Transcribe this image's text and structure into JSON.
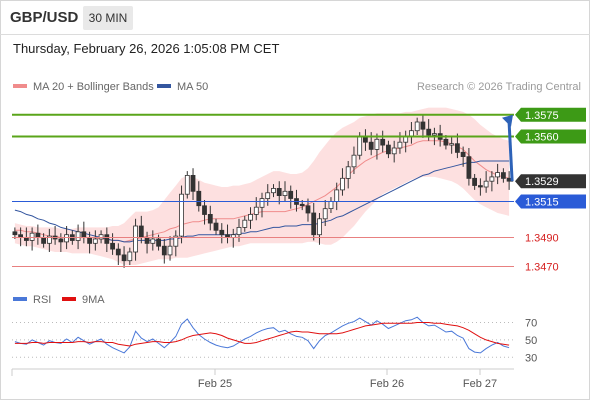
{
  "header": {
    "symbol": "GBP/USD",
    "timeframe": "30 MIN",
    "datetime": "Thursday, February 26, 2026 1:05:08 PM CET"
  },
  "chart_data": {
    "type": "candlestick",
    "legend": [
      {
        "label": "MA 20 + Bollinger Bands",
        "color": "#f08c8c"
      },
      {
        "label": "MA 50",
        "color": "#34569f"
      }
    ],
    "attribution": "Research © 2026 Trading Central",
    "x_ticks": [
      "Feb 25",
      "Feb 26",
      "Feb 27"
    ],
    "y_range": [
      1.3462,
      1.3588
    ],
    "current_price": "1.3529",
    "levels": [
      {
        "value": 1.3575,
        "label": "1.3575",
        "style": "resistance"
      },
      {
        "value": 1.356,
        "label": "1.3560",
        "style": "resistance"
      },
      {
        "value": 1.3529,
        "label": "1.3529",
        "style": "current"
      },
      {
        "value": 1.3515,
        "label": "1.3515",
        "style": "pivot"
      },
      {
        "value": 1.349,
        "label": "1.3490",
        "style": "support"
      },
      {
        "value": 1.347,
        "label": "1.3470",
        "style": "support"
      }
    ],
    "forecast_arrow": {
      "from": 1.3529,
      "to": 1.3575
    },
    "closes": [
      1.3492,
      1.349,
      1.3488,
      1.3493,
      1.349,
      1.3486,
      1.3491,
      1.3489,
      1.3487,
      1.3492,
      1.3488,
      1.3494,
      1.349,
      1.3486,
      1.3489,
      1.3492,
      1.3486,
      1.3482,
      1.3478,
      1.3474,
      1.348,
      1.3498,
      1.349,
      1.3486,
      1.3489,
      1.3484,
      1.3478,
      1.3484,
      1.3491,
      1.352,
      1.3533,
      1.3522,
      1.3512,
      1.3506,
      1.35,
      1.3495,
      1.3492,
      1.349,
      1.3492,
      1.3497,
      1.3502,
      1.3506,
      1.3511,
      1.3517,
      1.3521,
      1.3524,
      1.3519,
      1.3522,
      1.3517,
      1.3513,
      1.3512,
      1.3507,
      1.3492,
      1.3503,
      1.351,
      1.3515,
      1.3523,
      1.3531,
      1.3539,
      1.3547,
      1.356,
      1.3556,
      1.3551,
      1.3558,
      1.3554,
      1.3548,
      1.3552,
      1.3556,
      1.356,
      1.3564,
      1.357,
      1.3565,
      1.3561,
      1.3562,
      1.3558,
      1.3554,
      1.3555,
      1.3549,
      1.3546,
      1.3531,
      1.3526,
      1.3525,
      1.3529,
      1.3532,
      1.3535,
      1.3531,
      1.3529
    ],
    "ma20": [
      1.3495,
      1.3495,
      1.3494,
      1.3494,
      1.3493,
      1.3492,
      1.3491,
      1.3491,
      1.349,
      1.349,
      1.349,
      1.349,
      1.349,
      1.349,
      1.349,
      1.3489,
      1.3489,
      1.3488,
      1.3488,
      1.3487,
      1.3488,
      1.3489,
      1.349,
      1.3491,
      1.3492,
      1.3493,
      1.3494,
      1.3496,
      1.3497,
      1.3499,
      1.35,
      1.3501,
      1.3501,
      1.3502,
      1.3503,
      1.3503,
      1.3503,
      1.3503,
      1.3503,
      1.3504,
      1.3505,
      1.3506,
      1.3507,
      1.3508,
      1.3508,
      1.3508,
      1.3508,
      1.3508,
      1.3509,
      1.351,
      1.3511,
      1.3513,
      1.3515,
      1.3517,
      1.3519,
      1.3522,
      1.3525,
      1.3529,
      1.3533,
      1.3537,
      1.354,
      1.3543,
      1.3545,
      1.3547,
      1.3549,
      1.355,
      1.3551,
      1.3552,
      1.3553,
      1.3554,
      1.3556,
      1.3557,
      1.3557,
      1.3557,
      1.3557,
      1.3556,
      1.3555,
      1.3553,
      1.3551,
      1.3547,
      1.3543,
      1.354,
      1.3537,
      1.3535,
      1.3533,
      1.3532,
      1.3531
    ],
    "bb_upper": [
      1.35,
      1.3499,
      1.3498,
      1.3498,
      1.3497,
      1.3497,
      1.3497,
      1.3497,
      1.3496,
      1.3496,
      1.3496,
      1.3497,
      1.3497,
      1.3497,
      1.3497,
      1.3497,
      1.3497,
      1.3498,
      1.3498,
      1.35,
      1.3504,
      1.3508,
      1.3508,
      1.3508,
      1.3509,
      1.3511,
      1.3516,
      1.3521,
      1.3526,
      1.3531,
      1.3533,
      1.3532,
      1.353,
      1.3528,
      1.3527,
      1.3526,
      1.3525,
      1.3525,
      1.3526,
      1.3526,
      1.3527,
      1.3528,
      1.353,
      1.3532,
      1.3534,
      1.3536,
      1.3536,
      1.3535,
      1.3534,
      1.3534,
      1.3535,
      1.3538,
      1.3543,
      1.3549,
      1.3554,
      1.3559,
      1.3563,
      1.3566,
      1.3568,
      1.357,
      1.3573,
      1.3574,
      1.3575,
      1.3576,
      1.3576,
      1.3576,
      1.3576,
      1.3576,
      1.3577,
      1.3577,
      1.3578,
      1.3579,
      1.358,
      1.358,
      1.358,
      1.358,
      1.3579,
      1.3578,
      1.3577,
      1.3575,
      1.3572,
      1.3568,
      1.3565,
      1.3562,
      1.356,
      1.3558,
      1.3557
    ],
    "bb_lower": [
      1.3486,
      1.3485,
      1.3484,
      1.3484,
      1.3483,
      1.3482,
      1.3481,
      1.348,
      1.348,
      1.348,
      1.3479,
      1.3479,
      1.3479,
      1.3479,
      1.3478,
      1.3477,
      1.3476,
      1.3475,
      1.3473,
      1.3471,
      1.3471,
      1.3471,
      1.3472,
      1.3473,
      1.3474,
      1.3475,
      1.3475,
      1.3475,
      1.3476,
      1.3476,
      1.3476,
      1.3477,
      1.3478,
      1.3479,
      1.348,
      1.3481,
      1.3482,
      1.3483,
      1.3484,
      1.3484,
      1.3485,
      1.3486,
      1.3486,
      1.3486,
      1.3486,
      1.3486,
      1.3486,
      1.3486,
      1.3486,
      1.3486,
      1.3486,
      1.3487,
      1.3487,
      1.3486,
      1.3485,
      1.3485,
      1.3487,
      1.349,
      1.3494,
      1.3498,
      1.3503,
      1.3508,
      1.3512,
      1.3516,
      1.352,
      1.3522,
      1.3524,
      1.3526,
      1.3528,
      1.353,
      1.3531,
      1.3532,
      1.3532,
      1.3532,
      1.3531,
      1.353,
      1.3529,
      1.3527,
      1.3524,
      1.352,
      1.3516,
      1.3513,
      1.3511,
      1.3509,
      1.3507,
      1.3506,
      1.3505
    ],
    "ma50": [
      1.3509,
      1.3508,
      1.3506,
      1.3505,
      1.3503,
      1.3502,
      1.35,
      1.3499,
      1.3497,
      1.3496,
      1.3495,
      1.3494,
      1.3493,
      1.3492,
      1.3491,
      1.349,
      1.3489,
      1.3488,
      1.3488,
      1.3487,
      1.3487,
      1.3488,
      1.3488,
      1.3488,
      1.3488,
      1.3488,
      1.3488,
      1.3489,
      1.3489,
      1.349,
      1.3491,
      1.3491,
      1.3492,
      1.3492,
      1.3492,
      1.3492,
      1.3492,
      1.3492,
      1.3492,
      1.3493,
      1.3493,
      1.3494,
      1.3494,
      1.3495,
      1.3496,
      1.3497,
      1.3497,
      1.3498,
      1.3498,
      1.3498,
      1.3499,
      1.3499,
      1.3499,
      1.35,
      1.3501,
      1.3502,
      1.3504,
      1.3505,
      1.3507,
      1.3509,
      1.3511,
      1.3513,
      1.3515,
      1.3517,
      1.3519,
      1.3521,
      1.3523,
      1.3525,
      1.3527,
      1.3529,
      1.3531,
      1.3533,
      1.3534,
      1.3536,
      1.3537,
      1.3538,
      1.3539,
      1.354,
      1.3541,
      1.3542,
      1.3542,
      1.3543,
      1.3543,
      1.3543,
      1.3543,
      1.3543,
      1.3543
    ],
    "rsi": {
      "legend": [
        {
          "label": "RSI",
          "color": "#4a78d8"
        },
        {
          "label": "9MA",
          "color": "#e01010"
        }
      ],
      "y_ticks": [
        "70",
        "50",
        "30"
      ],
      "y_range": [
        20,
        82
      ],
      "rsi_values": [
        48,
        46,
        45,
        50,
        47,
        44,
        49,
        47,
        46,
        51,
        47,
        53,
        49,
        45,
        48,
        51,
        45,
        41,
        38,
        35,
        42,
        60,
        52,
        48,
        51,
        46,
        41,
        47,
        54,
        68,
        74,
        64,
        56,
        51,
        47,
        44,
        42,
        41,
        43,
        47,
        51,
        54,
        58,
        61,
        63,
        64,
        59,
        61,
        57,
        54,
        53,
        49,
        40,
        49,
        55,
        58,
        62,
        66,
        69,
        71,
        75,
        71,
        67,
        72,
        68,
        63,
        66,
        69,
        72,
        73,
        76,
        70,
        66,
        67,
        63,
        59,
        60,
        55,
        52,
        40,
        36,
        35,
        40,
        44,
        47,
        43,
        41
      ],
      "ma9_values": [
        46,
        46,
        46,
        47,
        47,
        46,
        47,
        47,
        47,
        47,
        47,
        48,
        48,
        47,
        48,
        48,
        47,
        47,
        45,
        44,
        43,
        45,
        46,
        47,
        48,
        48,
        47,
        47,
        48,
        50,
        53,
        55,
        56,
        57,
        58,
        57,
        55,
        52,
        50,
        48,
        46,
        46,
        47,
        49,
        51,
        53,
        55,
        57,
        59,
        60,
        59,
        59,
        58,
        57,
        57,
        57,
        57,
        58,
        60,
        62,
        64,
        66,
        67,
        68,
        69,
        69,
        69,
        69,
        69,
        69,
        70,
        70,
        70,
        69,
        69,
        68,
        67,
        66,
        64,
        61,
        57,
        53,
        50,
        48,
        46,
        45,
        44
      ]
    }
  }
}
